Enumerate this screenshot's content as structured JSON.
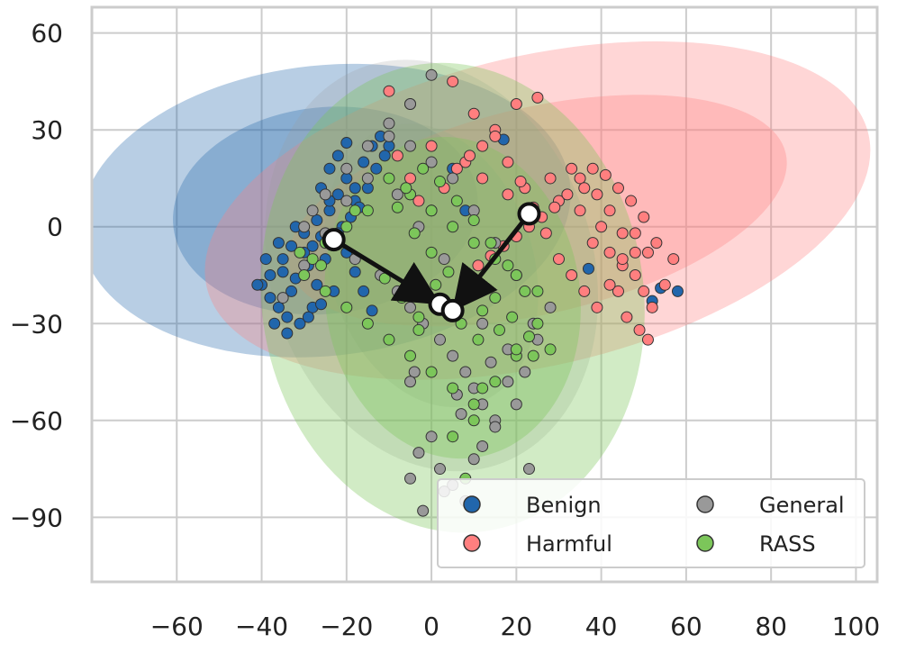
{
  "chart_data": {
    "type": "scatter",
    "title": "",
    "xlabel": "",
    "ylabel": "",
    "xlim": [
      -80,
      105
    ],
    "ylim": [
      -110,
      68
    ],
    "xticks": [
      -60,
      -40,
      -20,
      0,
      20,
      40,
      60,
      80,
      100
    ],
    "yticks": [
      -90,
      -60,
      -30,
      0,
      30,
      60
    ],
    "grid": true,
    "legend": {
      "position": "lower-right",
      "entries": [
        {
          "label": "Benign",
          "color": "#2166ac"
        },
        {
          "label": "General",
          "color": "#999999"
        },
        {
          "label": "Harmful",
          "color": "#ff7f7f"
        },
        {
          "label": "RASS",
          "color": "#7cc65a"
        }
      ]
    },
    "series": [
      {
        "name": "Benign",
        "color": "#2166ac",
        "ellipses": [
          {
            "cx": -25,
            "cy": 5,
            "rx": 36,
            "ry": 32,
            "angle": -6,
            "opacity": 0.32
          },
          {
            "cx": -25,
            "cy": 5,
            "rx": 58,
            "ry": 45,
            "angle": -6,
            "opacity": 0.32
          }
        ],
        "points": [
          [
            -38,
            -15
          ],
          [
            -35,
            -10
          ],
          [
            -33,
            -20
          ],
          [
            -30,
            -8
          ],
          [
            -28,
            -25
          ],
          [
            -40,
            -18
          ],
          [
            -36,
            -5
          ],
          [
            -32,
            0
          ],
          [
            -29,
            -12
          ],
          [
            -26,
            -3
          ],
          [
            -24,
            5
          ],
          [
            -22,
            10
          ],
          [
            -20,
            15
          ],
          [
            -18,
            8
          ],
          [
            -16,
            20
          ],
          [
            -14,
            25
          ],
          [
            -12,
            28
          ],
          [
            -10,
            25
          ],
          [
            -38,
            -22
          ],
          [
            -34,
            -28
          ],
          [
            -31,
            -30
          ],
          [
            -27,
            -18
          ],
          [
            -25,
            -10
          ],
          [
            -23,
            -5
          ],
          [
            -21,
            0
          ],
          [
            -19,
            3
          ],
          [
            -17,
            6
          ],
          [
            -15,
            12
          ],
          [
            -13,
            18
          ],
          [
            -11,
            22
          ],
          [
            -35,
            -14
          ],
          [
            -33,
            -6
          ],
          [
            -30,
            -2
          ],
          [
            -27,
            2
          ],
          [
            -24,
            8
          ],
          [
            -22,
            -2
          ],
          [
            -20,
            -8
          ],
          [
            -18,
            -14
          ],
          [
            -16,
            -20
          ],
          [
            -14,
            -26
          ],
          [
            -37,
            -30
          ],
          [
            -34,
            -33
          ],
          [
            -29,
            -28
          ],
          [
            -26,
            -24
          ],
          [
            -23,
            -20
          ],
          [
            -41,
            -18
          ],
          [
            -39,
            -10
          ],
          [
            -36,
            -25
          ],
          [
            -32,
            -16
          ],
          [
            -28,
            -6
          ],
          [
            -26,
            12
          ],
          [
            -24,
            18
          ],
          [
            -22,
            22
          ],
          [
            -20,
            26
          ],
          [
            -18,
            12
          ],
          [
            5,
            18
          ],
          [
            8,
            5
          ],
          [
            17,
            27
          ],
          [
            37,
            -13
          ],
          [
            54,
            -19
          ],
          [
            58,
            -20
          ],
          [
            52,
            -23
          ]
        ]
      },
      {
        "name": "Harmful",
        "color": "#ff7f7f",
        "ellipses": [
          {
            "cx": 25,
            "cy": 5,
            "rx": 60,
            "ry": 32,
            "angle": -13,
            "opacity": 0.32
          },
          {
            "cx": 25,
            "cy": 5,
            "rx": 80,
            "ry": 48,
            "angle": -13,
            "opacity": 0.32
          }
        ],
        "points": [
          [
            -10,
            42
          ],
          [
            -5,
            38
          ],
          [
            5,
            45
          ],
          [
            10,
            35
          ],
          [
            15,
            30
          ],
          [
            20,
            38
          ],
          [
            25,
            40
          ],
          [
            -8,
            22
          ],
          [
            0,
            25
          ],
          [
            8,
            20
          ],
          [
            12,
            15
          ],
          [
            18,
            10
          ],
          [
            22,
            12
          ],
          [
            28,
            15
          ],
          [
            30,
            8
          ],
          [
            35,
            5
          ],
          [
            38,
            -5
          ],
          [
            40,
            0
          ],
          [
            42,
            -8
          ],
          [
            45,
            -12
          ],
          [
            48,
            -15
          ],
          [
            50,
            -20
          ],
          [
            52,
            -25
          ],
          [
            55,
            -18
          ],
          [
            57,
            -10
          ],
          [
            53,
            -5
          ],
          [
            50,
            3
          ],
          [
            47,
            8
          ],
          [
            44,
            12
          ],
          [
            41,
            16
          ],
          [
            38,
            18
          ],
          [
            35,
            15
          ],
          [
            32,
            10
          ],
          [
            29,
            6
          ],
          [
            26,
            3
          ],
          [
            23,
            0
          ],
          [
            20,
            -3
          ],
          [
            17,
            -6
          ],
          [
            14,
            -9
          ],
          [
            11,
            -12
          ],
          [
            44,
            -20
          ],
          [
            46,
            -28
          ],
          [
            49,
            -32
          ],
          [
            51,
            -35
          ],
          [
            48,
            -8
          ],
          [
            45,
            -2
          ],
          [
            42,
            5
          ],
          [
            39,
            10
          ],
          [
            36,
            12
          ],
          [
            33,
            18
          ],
          [
            -5,
            15
          ],
          [
            -3,
            8
          ],
          [
            0,
            5
          ],
          [
            3,
            12
          ],
          [
            6,
            18
          ],
          [
            9,
            22
          ],
          [
            12,
            25
          ],
          [
            15,
            28
          ],
          [
            18,
            20
          ],
          [
            21,
            14
          ],
          [
            24,
            6
          ],
          [
            27,
            -2
          ],
          [
            30,
            -10
          ],
          [
            33,
            -15
          ],
          [
            36,
            -20
          ],
          [
            39,
            -25
          ],
          [
            42,
            -18
          ],
          [
            45,
            -10
          ],
          [
            48,
            -2
          ],
          [
            51,
            -8
          ]
        ]
      },
      {
        "name": "General",
        "color": "#999999",
        "ellipses": [
          {
            "cx": 0,
            "cy": -12,
            "rx": 38,
            "ry": 65,
            "angle": -18,
            "opacity": 0.22
          },
          {
            "cx": 0,
            "cy": -12,
            "rx": 24,
            "ry": 45,
            "angle": -18,
            "opacity": 0.22
          }
        ],
        "points": [
          [
            0,
            47
          ],
          [
            -5,
            38
          ],
          [
            -10,
            32
          ],
          [
            -15,
            25
          ],
          [
            -20,
            18
          ],
          [
            -25,
            10
          ],
          [
            -28,
            5
          ],
          [
            -30,
            0
          ],
          [
            -22,
            -5
          ],
          [
            -18,
            -10
          ],
          [
            -12,
            -15
          ],
          [
            -8,
            -20
          ],
          [
            -5,
            -25
          ],
          [
            -2,
            -30
          ],
          [
            2,
            -35
          ],
          [
            5,
            -40
          ],
          [
            8,
            -45
          ],
          [
            10,
            -50
          ],
          [
            12,
            -55
          ],
          [
            15,
            -60
          ],
          [
            0,
            -65
          ],
          [
            -3,
            -70
          ],
          [
            2,
            -75
          ],
          [
            5,
            -80
          ],
          [
            8,
            -85
          ],
          [
            -2,
            -88
          ],
          [
            3,
            -82
          ],
          [
            -5,
            -78
          ],
          [
            10,
            -72
          ],
          [
            15,
            -62
          ],
          [
            20,
            -55
          ],
          [
            22,
            -45
          ],
          [
            25,
            -35
          ],
          [
            28,
            -25
          ],
          [
            20,
            -15
          ],
          [
            15,
            -5
          ],
          [
            10,
            5
          ],
          [
            5,
            15
          ],
          [
            0,
            20
          ],
          [
            -5,
            25
          ],
          [
            -10,
            28
          ],
          [
            -15,
            15
          ],
          [
            -20,
            8
          ],
          [
            -25,
            -2
          ],
          [
            -30,
            -12
          ],
          [
            -35,
            -22
          ],
          [
            12,
            -30
          ],
          [
            18,
            -38
          ],
          [
            8,
            -20
          ],
          [
            3,
            -10
          ],
          [
            -3,
            0
          ],
          [
            -8,
            10
          ],
          [
            6,
            -52
          ],
          [
            -4,
            -45
          ],
          [
            14,
            -42
          ],
          [
            18,
            -48
          ],
          [
            23,
            -75
          ],
          [
            -5,
            -48
          ],
          [
            7,
            -58
          ],
          [
            12,
            -68
          ],
          [
            24,
            -30
          ]
        ]
      },
      {
        "name": "RASS",
        "color": "#7cc65a",
        "ellipses": [
          {
            "cx": 5,
            "cy": -22,
            "rx": 45,
            "ry": 73,
            "angle": -8,
            "opacity": 0.35
          },
          {
            "cx": 5,
            "cy": -22,
            "rx": 30,
            "ry": 50,
            "angle": -8,
            "opacity": 0.35
          }
        ],
        "points": [
          [
            -10,
            15
          ],
          [
            -5,
            10
          ],
          [
            0,
            5
          ],
          [
            5,
            0
          ],
          [
            10,
            -5
          ],
          [
            15,
            -10
          ],
          [
            20,
            -15
          ],
          [
            25,
            -20
          ],
          [
            -15,
            5
          ],
          [
            -20,
            0
          ],
          [
            -25,
            -5
          ],
          [
            -28,
            -10
          ],
          [
            -30,
            -15
          ],
          [
            -25,
            -20
          ],
          [
            -20,
            -25
          ],
          [
            -15,
            -30
          ],
          [
            -10,
            -35
          ],
          [
            -5,
            -40
          ],
          [
            0,
            -45
          ],
          [
            5,
            -50
          ],
          [
            10,
            -55
          ],
          [
            15,
            -48
          ],
          [
            20,
            -40
          ],
          [
            25,
            -30
          ],
          [
            22,
            -20
          ],
          [
            18,
            -12
          ],
          [
            14,
            -5
          ],
          [
            10,
            2
          ],
          [
            6,
            8
          ],
          [
            2,
            14
          ],
          [
            -2,
            18
          ],
          [
            -6,
            12
          ],
          [
            -8,
            6
          ],
          [
            -4,
            -2
          ],
          [
            0,
            -8
          ],
          [
            4,
            -14
          ],
          [
            8,
            -20
          ],
          [
            12,
            -26
          ],
          [
            16,
            -32
          ],
          [
            20,
            -38
          ],
          [
            3,
            -25
          ],
          [
            7,
            -30
          ],
          [
            11,
            -35
          ],
          [
            -3,
            -28
          ],
          [
            -7,
            -22
          ],
          [
            -11,
            -16
          ],
          [
            15,
            -22
          ],
          [
            19,
            -28
          ],
          [
            23,
            -34
          ],
          [
            8,
            -78
          ],
          [
            5,
            -65
          ],
          [
            10,
            -60
          ],
          [
            12,
            -50
          ],
          [
            -3,
            -32
          ],
          [
            1,
            -18
          ],
          [
            24,
            -40
          ],
          [
            28,
            -38
          ],
          [
            -31,
            -8
          ],
          [
            -26,
            -12
          ],
          [
            -18,
            5
          ]
        ]
      }
    ],
    "centroids": [
      {
        "name": "Benign",
        "x": -23,
        "y": -4
      },
      {
        "name": "Harmful",
        "x": 23,
        "y": 4
      },
      {
        "name": "General",
        "x": 2,
        "y": -24
      },
      {
        "name": "RASS",
        "x": 5,
        "y": -26
      }
    ],
    "arrows": [
      {
        "from": [
          -23,
          -4
        ],
        "to": [
          2,
          -24
        ]
      },
      {
        "from": [
          23,
          4
        ],
        "to": [
          5,
          -26
        ]
      }
    ]
  }
}
